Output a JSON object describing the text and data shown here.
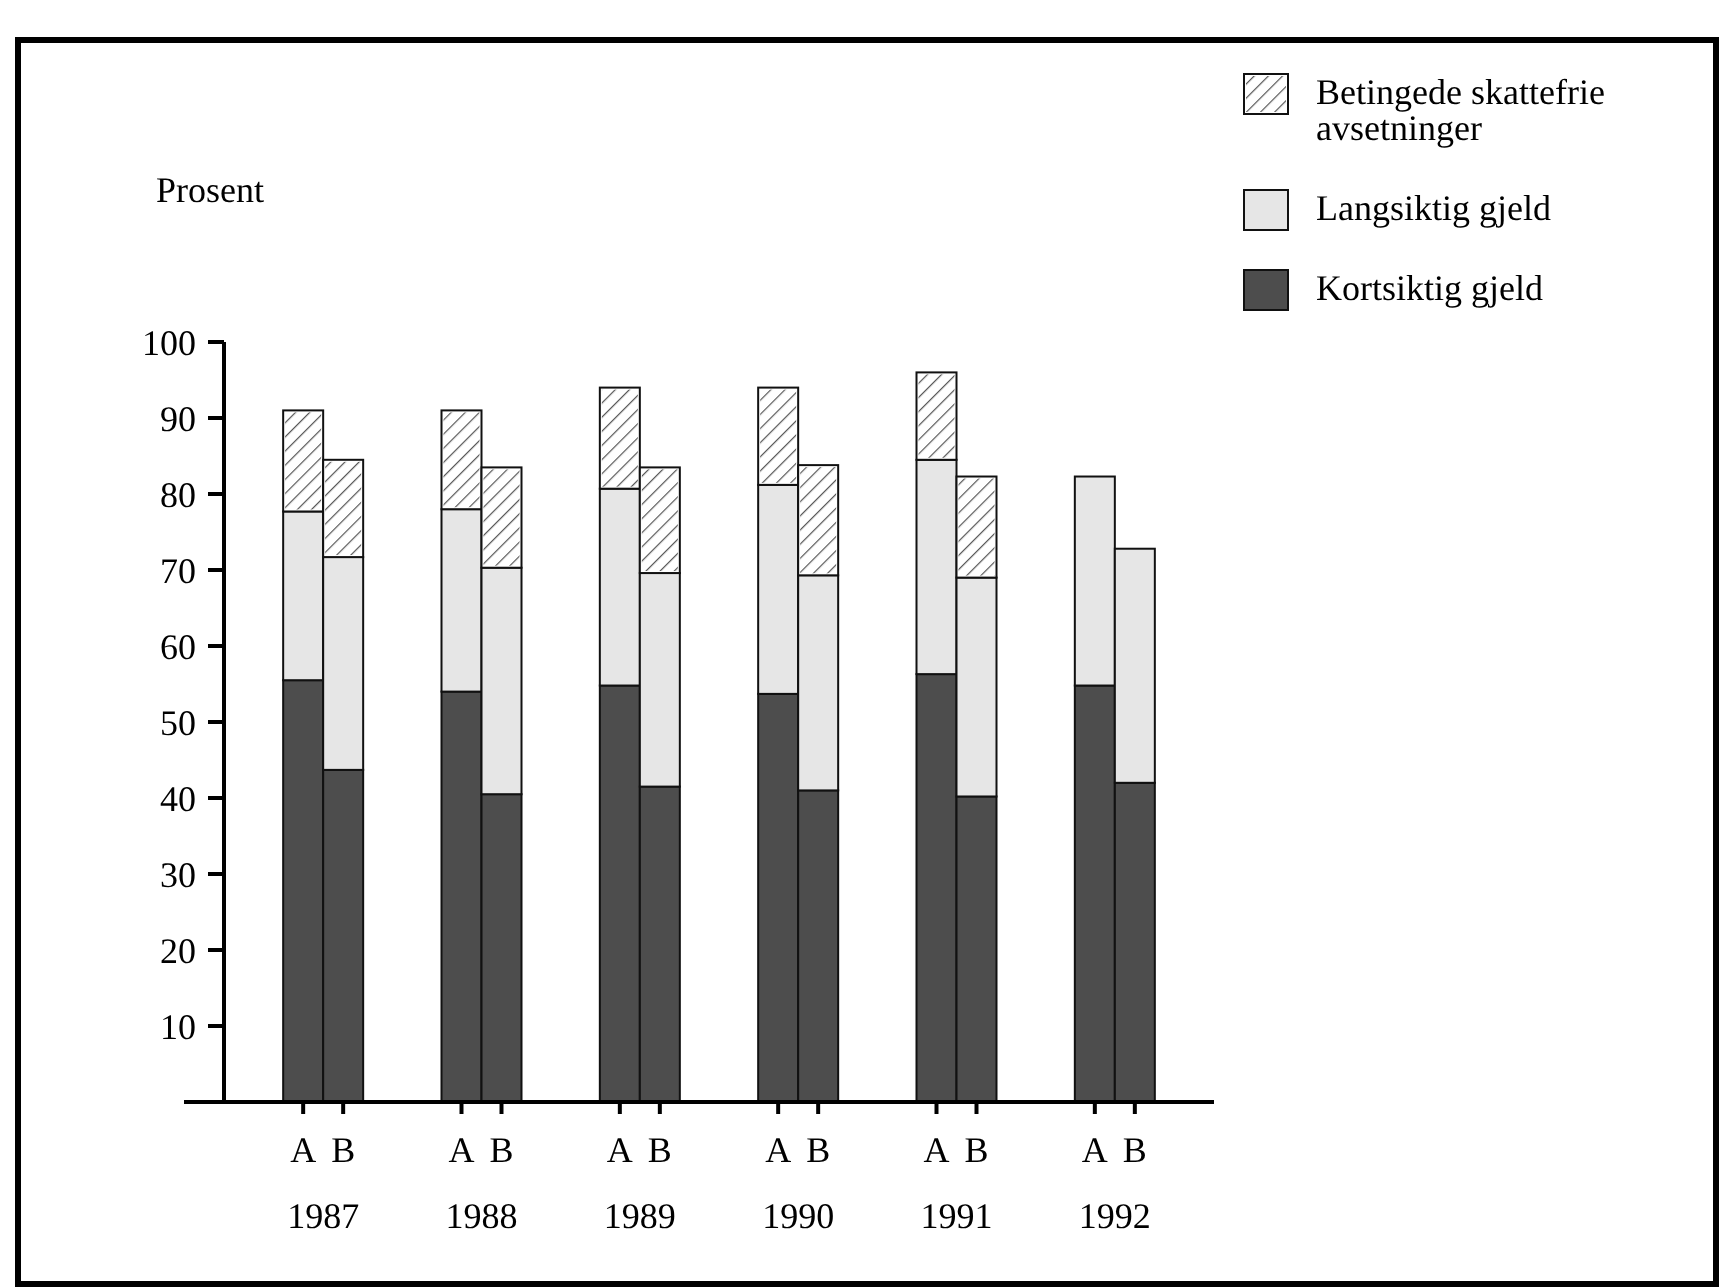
{
  "chart_data": {
    "type": "bar",
    "stacked": true,
    "ylabel": "Prosent",
    "ylim": [
      0,
      100
    ],
    "yticks": [
      10,
      20,
      30,
      40,
      50,
      60,
      70,
      80,
      90,
      100
    ],
    "grid": false,
    "legend": "top right",
    "categories": [
      "A",
      "B",
      "A",
      "B",
      "A",
      "B",
      "A",
      "B",
      "A",
      "B",
      "A",
      "B"
    ],
    "annotations": [
      "1987",
      "1988",
      "1989",
      "1990",
      "1991",
      "1992"
    ],
    "series": [
      {
        "name": "Kortsiktig gjeld",
        "color": "#4d4d4d",
        "values": [
          55.5,
          43.7,
          54,
          40.5,
          54.8,
          41.5,
          53.7,
          41,
          56.3,
          40.2,
          54.8,
          42
        ]
      },
      {
        "name": "Langsiktig gjeld",
        "color": "#e6e6e6",
        "values": [
          22.2,
          28,
          24,
          29.8,
          25.9,
          28.1,
          27.5,
          28.3,
          28.2,
          28.8,
          27.5,
          30.8
        ]
      },
      {
        "name": "Betingede skattefrie avsetninger",
        "color": "#ffffff",
        "values": [
          13.3,
          12.8,
          13,
          13.2,
          13.3,
          13.9,
          12.8,
          14.5,
          11.5,
          13.3,
          null,
          null
        ]
      }
    ]
  }
}
